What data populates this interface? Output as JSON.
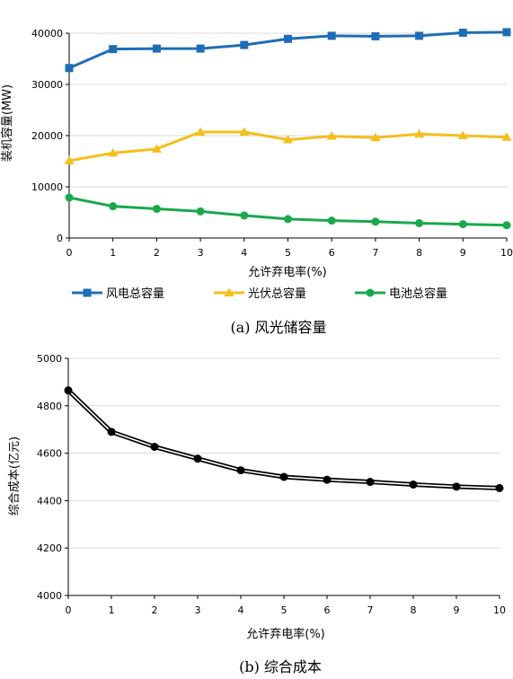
{
  "chart_data": [
    {
      "type": "line",
      "caption": "(a)  风光储容量",
      "xlabel": "允许弃电率(%)",
      "ylabel": "装机容量(MW)",
      "x": [
        0,
        1,
        2,
        3,
        4,
        5,
        6,
        7,
        8,
        9,
        10
      ],
      "xlim": [
        0,
        10
      ],
      "ylim": [
        0,
        40000
      ],
      "yticks": [
        0,
        10000,
        20000,
        30000,
        40000
      ],
      "grid": "horizontal",
      "legend_position": "bottom",
      "series": [
        {
          "name": "风电总容量",
          "color": "#1f6db5",
          "marker": "square",
          "values": [
            33200,
            36900,
            37000,
            37000,
            37700,
            38900,
            39500,
            39400,
            39500,
            40100,
            40200
          ]
        },
        {
          "name": "光伏总容量",
          "color": "#f4bf1a",
          "marker": "triangle",
          "values": [
            15100,
            16600,
            17400,
            20700,
            20700,
            19200,
            19900,
            19600,
            20300,
            20000,
            19700
          ]
        },
        {
          "name": "电池总容量",
          "color": "#1aa84c",
          "marker": "circle",
          "values": [
            7900,
            6200,
            5700,
            5200,
            4400,
            3700,
            3400,
            3200,
            2900,
            2700,
            2500
          ]
        }
      ]
    },
    {
      "type": "line",
      "caption": "(b)  综合成本",
      "xlabel": "允许弃电率(%)",
      "ylabel": "综合成本(亿元)",
      "x": [
        0,
        1,
        2,
        3,
        4,
        5,
        6,
        7,
        8,
        9,
        10
      ],
      "xlim": [
        0,
        10
      ],
      "ylim": [
        4000,
        5000
      ],
      "yticks": [
        4000,
        4200,
        4400,
        4600,
        4800,
        5000
      ],
      "grid": "horizontal",
      "series": [
        {
          "color": "#000000",
          "marker": "circle",
          "values": [
            4865,
            4690,
            4627,
            4577,
            4528,
            4500,
            4488,
            4479,
            4468,
            4459,
            4453
          ]
        }
      ]
    }
  ]
}
